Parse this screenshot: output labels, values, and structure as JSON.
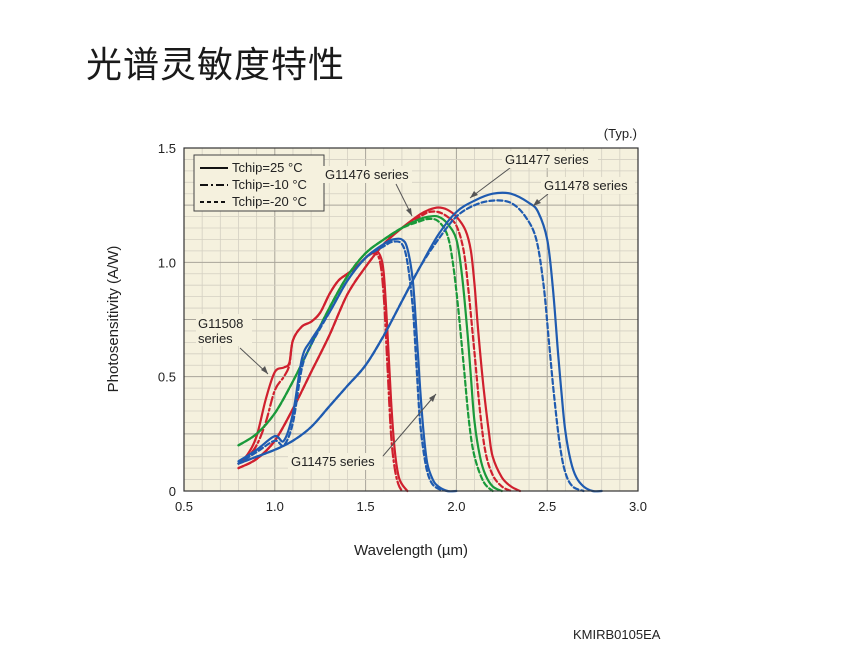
{
  "page": {
    "title": "光谱灵敏度特性",
    "figure_code": "KMIRB0105EA"
  },
  "chart_data": {
    "type": "line",
    "note": "(Typ.)",
    "xlabel": "Wavelength (µm)",
    "ylabel": "Photosensitivity (A/W)",
    "xlim": [
      0.5,
      3.0
    ],
    "ylim": [
      0,
      1.5
    ],
    "x_ticks": [
      0.5,
      1.0,
      1.5,
      2.0,
      2.5,
      3.0
    ],
    "y_ticks": [
      0,
      0.5,
      1.0,
      1.5
    ],
    "x_tick_labels": [
      "0.5",
      "1.0",
      "1.5",
      "2.0",
      "2.5",
      "3.0"
    ],
    "y_tick_labels": [
      "0",
      "0.5",
      "1.0",
      "1.5"
    ],
    "grid": true,
    "legend_placement": "top-left",
    "legend": [
      {
        "label": "Tchip=25 °C",
        "dash": "solid"
      },
      {
        "label": "Tchip=-10 °C",
        "dash": "dashdot"
      },
      {
        "label": "Tchip=-20 °C",
        "dash": "dashed"
      }
    ],
    "series_labels": [
      {
        "text": "G11508 series",
        "color": "#d0202e"
      },
      {
        "text": "G11476 series",
        "color": "#d0202e"
      },
      {
        "text": "G11477 series",
        "color": "#1a9a3a"
      },
      {
        "text": "G11478 series",
        "color": "#1f5bb0"
      },
      {
        "text": "G11475 series",
        "color": "#1f5bb0"
      }
    ],
    "series": [
      {
        "color": "#d0202e",
        "dash": "solid",
        "x": [
          0.8,
          0.85,
          0.9,
          0.95,
          1.0,
          1.05,
          1.08,
          1.1,
          1.15,
          1.2,
          1.25,
          1.3,
          1.35,
          1.4,
          1.45,
          1.5,
          1.55,
          1.58,
          1.6,
          1.62,
          1.64,
          1.66,
          1.68,
          1.7,
          1.73
        ],
        "y": [
          0.12,
          0.16,
          0.24,
          0.4,
          0.52,
          0.54,
          0.56,
          0.66,
          0.72,
          0.74,
          0.78,
          0.86,
          0.92,
          0.95,
          0.98,
          1.02,
          1.05,
          1.03,
          0.95,
          0.7,
          0.4,
          0.18,
          0.07,
          0.03,
          0.0
        ]
      },
      {
        "color": "#d0202e",
        "dash": "dashdot",
        "x": [
          0.8,
          0.85,
          0.9,
          0.95,
          1.0,
          1.05,
          1.08,
          1.1,
          1.15,
          1.2,
          1.25,
          1.3,
          1.35,
          1.4,
          1.45,
          1.5,
          1.55,
          1.58,
          1.6,
          1.62,
          1.64,
          1.66,
          1.68,
          1.7
        ],
        "y": [
          0.12,
          0.15,
          0.2,
          0.3,
          0.44,
          0.5,
          0.55,
          0.66,
          0.72,
          0.74,
          0.78,
          0.86,
          0.92,
          0.95,
          0.98,
          1.02,
          1.04,
          1.0,
          0.85,
          0.55,
          0.25,
          0.1,
          0.03,
          0.0
        ]
      },
      {
        "color": "#d0202e",
        "dash": "solid",
        "x": [
          0.8,
          0.9,
          1.0,
          1.1,
          1.2,
          1.3,
          1.4,
          1.5,
          1.6,
          1.7,
          1.8,
          1.85,
          1.9,
          1.95,
          2.0,
          2.05,
          2.08,
          2.1,
          2.12,
          2.15,
          2.18,
          2.2,
          2.25,
          2.3,
          2.35
        ],
        "y": [
          0.1,
          0.14,
          0.22,
          0.36,
          0.52,
          0.68,
          0.86,
          0.98,
          1.08,
          1.15,
          1.21,
          1.23,
          1.24,
          1.23,
          1.2,
          1.14,
          1.05,
          0.9,
          0.7,
          0.45,
          0.25,
          0.15,
          0.06,
          0.02,
          0.0
        ]
      },
      {
        "color": "#d0202e",
        "dash": "dashed",
        "x": [
          0.8,
          0.9,
          1.0,
          1.1,
          1.2,
          1.3,
          1.4,
          1.5,
          1.6,
          1.7,
          1.8,
          1.85,
          1.9,
          1.95,
          2.0,
          2.04,
          2.07,
          2.1,
          2.13,
          2.16,
          2.2,
          2.25,
          2.3
        ],
        "y": [
          0.1,
          0.14,
          0.22,
          0.36,
          0.52,
          0.68,
          0.86,
          0.98,
          1.08,
          1.15,
          1.2,
          1.22,
          1.22,
          1.2,
          1.16,
          1.05,
          0.85,
          0.6,
          0.35,
          0.17,
          0.07,
          0.02,
          0.0
        ]
      },
      {
        "color": "#1a9a3a",
        "dash": "solid",
        "x": [
          0.8,
          0.9,
          1.0,
          1.1,
          1.2,
          1.3,
          1.4,
          1.5,
          1.6,
          1.7,
          1.8,
          1.85,
          1.9,
          1.95,
          2.0,
          2.03,
          2.06,
          2.08,
          2.1,
          2.13,
          2.16,
          2.2,
          2.25
        ],
        "y": [
          0.2,
          0.25,
          0.34,
          0.48,
          0.64,
          0.8,
          0.94,
          1.04,
          1.1,
          1.15,
          1.19,
          1.2,
          1.2,
          1.17,
          1.1,
          0.95,
          0.7,
          0.5,
          0.3,
          0.15,
          0.07,
          0.02,
          0.0
        ]
      },
      {
        "color": "#1a9a3a",
        "dash": "dashed",
        "x": [
          0.8,
          0.9,
          1.0,
          1.1,
          1.2,
          1.3,
          1.4,
          1.5,
          1.6,
          1.7,
          1.8,
          1.85,
          1.9,
          1.95,
          1.98,
          2.01,
          2.04,
          2.07,
          2.1,
          2.15,
          2.2
        ],
        "y": [
          0.2,
          0.25,
          0.34,
          0.48,
          0.64,
          0.8,
          0.94,
          1.04,
          1.1,
          1.15,
          1.18,
          1.19,
          1.18,
          1.12,
          1.0,
          0.8,
          0.55,
          0.3,
          0.15,
          0.04,
          0.0
        ]
      },
      {
        "color": "#1f5bb0",
        "dash": "solid",
        "x": [
          0.8,
          0.9,
          1.0,
          1.05,
          1.1,
          1.15,
          1.2,
          1.3,
          1.4,
          1.5,
          1.6,
          1.65,
          1.7,
          1.73,
          1.76,
          1.78,
          1.8,
          1.82,
          1.84,
          1.87,
          1.9,
          1.95,
          2.0
        ],
        "y": [
          0.13,
          0.18,
          0.24,
          0.22,
          0.34,
          0.58,
          0.66,
          0.78,
          0.92,
          1.02,
          1.08,
          1.1,
          1.1,
          1.06,
          0.92,
          0.7,
          0.45,
          0.25,
          0.12,
          0.05,
          0.02,
          0.0,
          0.0
        ]
      },
      {
        "color": "#1f5bb0",
        "dash": "dashed",
        "x": [
          0.8,
          0.9,
          1.0,
          1.05,
          1.1,
          1.15,
          1.2,
          1.3,
          1.4,
          1.5,
          1.6,
          1.65,
          1.7,
          1.73,
          1.76,
          1.78,
          1.8,
          1.83,
          1.86,
          1.9,
          1.95
        ],
        "y": [
          0.12,
          0.17,
          0.22,
          0.2,
          0.3,
          0.54,
          0.64,
          0.78,
          0.92,
          1.02,
          1.07,
          1.09,
          1.08,
          1.0,
          0.8,
          0.55,
          0.3,
          0.12,
          0.04,
          0.01,
          0.0
        ]
      },
      {
        "color": "#1f5bb0",
        "dash": "solid",
        "x": [
          0.8,
          0.9,
          1.0,
          1.1,
          1.2,
          1.3,
          1.4,
          1.5,
          1.6,
          1.7,
          1.8,
          1.9,
          2.0,
          2.1,
          2.2,
          2.3,
          2.4,
          2.45,
          2.5,
          2.53,
          2.56,
          2.58,
          2.6,
          2.63,
          2.66,
          2.7,
          2.75,
          2.8
        ],
        "y": [
          0.12,
          0.15,
          0.18,
          0.22,
          0.28,
          0.37,
          0.46,
          0.55,
          0.68,
          0.83,
          0.98,
          1.12,
          1.22,
          1.27,
          1.3,
          1.3,
          1.26,
          1.22,
          1.1,
          0.9,
          0.6,
          0.42,
          0.26,
          0.13,
          0.06,
          0.02,
          0.0,
          0.0
        ]
      },
      {
        "color": "#1f5bb0",
        "dash": "dashed",
        "x": [
          0.8,
          0.9,
          1.0,
          1.1,
          1.2,
          1.3,
          1.4,
          1.5,
          1.6,
          1.7,
          1.8,
          1.9,
          2.0,
          2.1,
          2.2,
          2.3,
          2.38,
          2.44,
          2.48,
          2.51,
          2.54,
          2.57,
          2.6,
          2.64,
          2.7
        ],
        "y": [
          0.12,
          0.15,
          0.18,
          0.22,
          0.28,
          0.37,
          0.46,
          0.55,
          0.68,
          0.83,
          0.98,
          1.1,
          1.2,
          1.25,
          1.27,
          1.26,
          1.2,
          1.1,
          0.9,
          0.65,
          0.4,
          0.2,
          0.08,
          0.02,
          0.0
        ]
      }
    ]
  }
}
